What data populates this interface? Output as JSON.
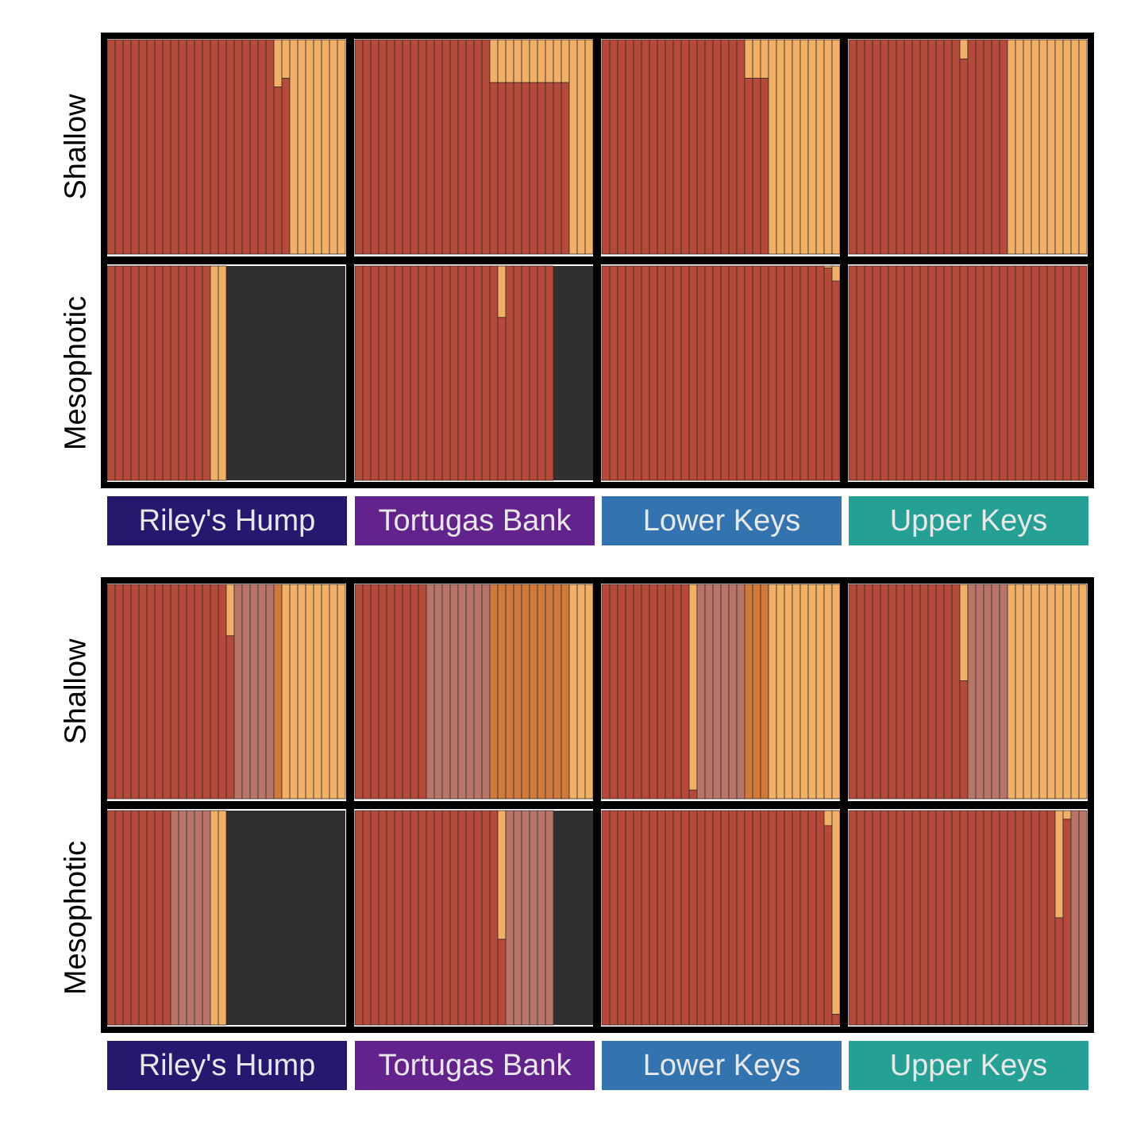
{
  "colors": {
    "cluster1": "#b5493a",
    "cluster2": "#f0b066",
    "cluster3": "#b8766a",
    "cluster4": "#cf7a3a",
    "missing": "#303030",
    "bar_outline": "#3a2a26",
    "frame": "#000000"
  },
  "regions": [
    {
      "name": "Riley's Hump",
      "color": "#27176e"
    },
    {
      "name": "Tortugas Bank",
      "color": "#63238c"
    },
    {
      "name": "Lower Keys",
      "color": "#3374b0"
    },
    {
      "name": "Upper Keys",
      "color": "#25a095"
    }
  ],
  "depth_labels": [
    "Shallow",
    "Mesophotic"
  ],
  "chart_data": [
    {
      "type": "bar",
      "stacked": true,
      "description_label": "",
      "ylim": [
        0,
        1
      ],
      "rows": [
        "Shallow",
        "Mesophotic"
      ],
      "columns": [
        "Riley's Hump",
        "Tortugas Bank",
        "Lower Keys",
        "Upper Keys"
      ],
      "panels": [
        [
          {
            "n": 30,
            "segments": [
              {
                "cluster": "cluster1",
                "count": 21,
                "value": 1.0
              },
              {
                "cluster": "cluster1",
                "count": 1,
                "value": 0.78
              },
              {
                "cluster": "cluster1",
                "count": 1,
                "value": 0.82
              },
              {
                "cluster": "cluster2",
                "count": 7,
                "value": 1.0
              }
            ]
          },
          {
            "n": 30,
            "segments": [
              {
                "cluster": "cluster1",
                "count": 17,
                "value": 1.0
              },
              {
                "cluster": "cluster1",
                "count": 10,
                "value": 0.8
              },
              {
                "cluster": "cluster2",
                "count": 3,
                "value": 1.0
              }
            ]
          },
          {
            "n": 30,
            "segments": [
              {
                "cluster": "cluster1",
                "count": 18,
                "value": 1.0
              },
              {
                "cluster": "cluster1",
                "count": 3,
                "value": 0.82
              },
              {
                "cluster": "cluster2",
                "count": 9,
                "value": 1.0
              }
            ]
          },
          {
            "n": 30,
            "segments": [
              {
                "cluster": "cluster1",
                "count": 14,
                "value": 1.0
              },
              {
                "cluster": "cluster1",
                "count": 1,
                "value": 0.91
              },
              {
                "cluster": "cluster1",
                "count": 5,
                "value": 1.0
              },
              {
                "cluster": "cluster2",
                "count": 10,
                "value": 1.0
              }
            ]
          }
        ],
        [
          {
            "n": 30,
            "segments": [
              {
                "cluster": "cluster1",
                "count": 13,
                "value": 1.0
              },
              {
                "cluster": "cluster2",
                "count": 2,
                "value": 1.0
              },
              {
                "cluster": "missing",
                "count": 15,
                "value": 1.0
              }
            ]
          },
          {
            "n": 30,
            "segments": [
              {
                "cluster": "cluster1",
                "count": 18,
                "value": 1.0
              },
              {
                "cluster": "cluster1",
                "count": 1,
                "value": 0.76
              },
              {
                "cluster": "cluster1",
                "count": 6,
                "value": 1.0
              },
              {
                "cluster": "missing",
                "count": 5,
                "value": 1.0
              }
            ]
          },
          {
            "n": 30,
            "segments": [
              {
                "cluster": "cluster1",
                "count": 28,
                "value": 1.0
              },
              {
                "cluster": "cluster1",
                "count": 1,
                "value": 0.99
              },
              {
                "cluster": "cluster1",
                "count": 1,
                "value": 0.93
              }
            ]
          },
          {
            "n": 30,
            "segments": [
              {
                "cluster": "cluster1",
                "count": 30,
                "value": 1.0
              }
            ]
          }
        ]
      ]
    },
    {
      "type": "bar",
      "stacked": true,
      "ylim": [
        0,
        1
      ],
      "rows": [
        "Shallow",
        "Mesophotic"
      ],
      "columns": [
        "Riley's Hump",
        "Tortugas Bank",
        "Lower Keys",
        "Upper Keys"
      ],
      "panels": [
        [
          {
            "n": 30,
            "segments": [
              {
                "cluster": "cluster1",
                "count": 15,
                "value": 1.0
              },
              {
                "cluster": "cluster1",
                "count": 1,
                "value": 0.76
              },
              {
                "cluster": "cluster3",
                "count": 5,
                "value": 1.0
              },
              {
                "cluster": "cluster4",
                "count": 1,
                "value": 1.0
              },
              {
                "cluster": "cluster2",
                "count": 8,
                "value": 1.0
              }
            ]
          },
          {
            "n": 30,
            "segments": [
              {
                "cluster": "cluster1",
                "count": 9,
                "value": 1.0
              },
              {
                "cluster": "cluster3",
                "count": 8,
                "value": 1.0
              },
              {
                "cluster": "cluster4",
                "count": 10,
                "value": 1.0
              },
              {
                "cluster": "cluster2",
                "count": 3,
                "value": 1.0
              }
            ]
          },
          {
            "n": 30,
            "segments": [
              {
                "cluster": "cluster1",
                "count": 11,
                "value": 1.0
              },
              {
                "cluster": "cluster1",
                "count": 1,
                "value": 0.04
              },
              {
                "cluster": "cluster3",
                "count": 6,
                "value": 1.0
              },
              {
                "cluster": "cluster4",
                "count": 3,
                "value": 1.0
              },
              {
                "cluster": "cluster2",
                "count": 9,
                "value": 1.0
              }
            ]
          },
          {
            "n": 30,
            "segments": [
              {
                "cluster": "cluster1",
                "count": 14,
                "value": 1.0
              },
              {
                "cluster": "cluster1",
                "count": 1,
                "value": 0.55
              },
              {
                "cluster": "cluster3",
                "count": 5,
                "value": 1.0
              },
              {
                "cluster": "cluster2",
                "count": 10,
                "value": 1.0
              }
            ]
          }
        ],
        [
          {
            "n": 30,
            "segments": [
              {
                "cluster": "cluster1",
                "count": 8,
                "value": 1.0
              },
              {
                "cluster": "cluster3",
                "count": 5,
                "value": 1.0
              },
              {
                "cluster": "cluster2",
                "count": 2,
                "value": 1.0
              },
              {
                "cluster": "missing",
                "count": 15,
                "value": 1.0
              }
            ]
          },
          {
            "n": 30,
            "segments": [
              {
                "cluster": "cluster1",
                "count": 18,
                "value": 1.0
              },
              {
                "cluster": "cluster1",
                "count": 1,
                "value": 0.4
              },
              {
                "cluster": "cluster3",
                "count": 6,
                "value": 1.0
              },
              {
                "cluster": "missing",
                "count": 5,
                "value": 1.0
              }
            ]
          },
          {
            "n": 30,
            "segments": [
              {
                "cluster": "cluster1",
                "count": 28,
                "value": 1.0
              },
              {
                "cluster": "cluster1",
                "count": 1,
                "value": 0.93
              },
              {
                "cluster": "cluster1",
                "count": 1,
                "value": 0.05
              }
            ]
          },
          {
            "n": 30,
            "segments": [
              {
                "cluster": "cluster1",
                "count": 26,
                "value": 1.0
              },
              {
                "cluster": "cluster1",
                "count": 1,
                "value": 0.5
              },
              {
                "cluster": "cluster1",
                "count": 1,
                "value": 0.96
              },
              {
                "cluster": "cluster3",
                "count": 2,
                "value": 1.0
              }
            ]
          }
        ]
      ]
    }
  ]
}
